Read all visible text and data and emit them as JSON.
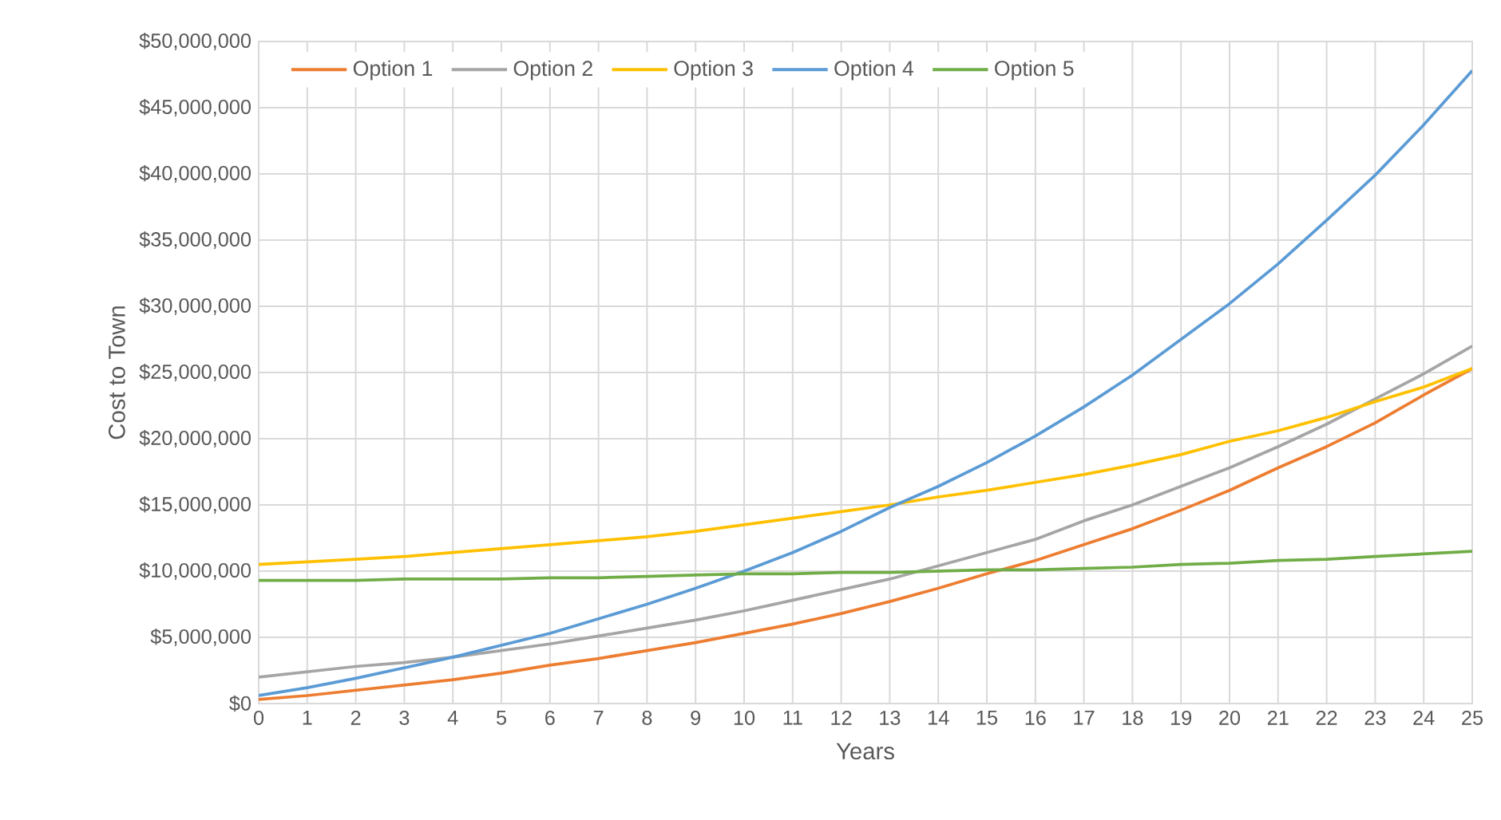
{
  "chart_data": {
    "type": "line",
    "xlabel": "Years",
    "ylabel": "Cost to Town",
    "x": [
      0,
      1,
      2,
      3,
      4,
      5,
      6,
      7,
      8,
      9,
      10,
      11,
      12,
      13,
      14,
      15,
      16,
      17,
      18,
      19,
      20,
      21,
      22,
      23,
      24,
      25
    ],
    "xlim": [
      0,
      25
    ],
    "xticks": [
      0,
      1,
      2,
      3,
      4,
      5,
      6,
      7,
      8,
      9,
      10,
      11,
      12,
      13,
      14,
      15,
      16,
      17,
      18,
      19,
      20,
      21,
      22,
      23,
      24,
      25
    ],
    "ylim": [
      0,
      50000000
    ],
    "yticks": [
      {
        "value": 0,
        "label": "$0"
      },
      {
        "value": 5000000,
        "label": "$5,000,000"
      },
      {
        "value": 10000000,
        "label": "$10,000,000"
      },
      {
        "value": 15000000,
        "label": "$15,000,000"
      },
      {
        "value": 20000000,
        "label": "$20,000,000"
      },
      {
        "value": 25000000,
        "label": "$25,000,000"
      },
      {
        "value": 30000000,
        "label": "$30,000,000"
      },
      {
        "value": 35000000,
        "label": "$35,000,000"
      },
      {
        "value": 40000000,
        "label": "$40,000,000"
      },
      {
        "value": 45000000,
        "label": "$45,000,000"
      },
      {
        "value": 50000000,
        "label": "$50,000,000"
      }
    ],
    "grid": true,
    "legend": "top",
    "line_style": "solid",
    "series": [
      {
        "name": "Option 1",
        "color": "#ed7d31",
        "values": [
          300000,
          600000,
          1000000,
          1400000,
          1800000,
          2300000,
          2900000,
          3400000,
          4000000,
          4600000,
          5300000,
          6000000,
          6800000,
          7700000,
          8700000,
          9800000,
          10800000,
          12000000,
          13200000,
          14600000,
          16100000,
          17800000,
          19400000,
          21200000,
          23300000,
          25300000
        ]
      },
      {
        "name": "Option 2",
        "color": "#a5a5a5",
        "values": [
          2000000,
          2400000,
          2800000,
          3100000,
          3500000,
          4000000,
          4500000,
          5100000,
          5700000,
          6300000,
          7000000,
          7800000,
          8600000,
          9400000,
          10400000,
          11400000,
          12400000,
          13800000,
          15000000,
          16400000,
          17800000,
          19400000,
          21100000,
          23000000,
          24900000,
          27000000
        ]
      },
      {
        "name": "Option 3",
        "color": "#ffc000",
        "values": [
          10500000,
          10700000,
          10900000,
          11100000,
          11400000,
          11700000,
          12000000,
          12300000,
          12600000,
          13000000,
          13500000,
          14000000,
          14500000,
          15000000,
          15600000,
          16100000,
          16700000,
          17300000,
          18000000,
          18800000,
          19800000,
          20600000,
          21600000,
          22800000,
          23900000,
          25300000
        ]
      },
      {
        "name": "Option 4",
        "color": "#5b9bd5",
        "values": [
          600000,
          1200000,
          1900000,
          2700000,
          3500000,
          4400000,
          5300000,
          6400000,
          7500000,
          8700000,
          10000000,
          11400000,
          13000000,
          14800000,
          16400000,
          18200000,
          20200000,
          22400000,
          24800000,
          27500000,
          30200000,
          33200000,
          36500000,
          39900000,
          43700000,
          47800000
        ]
      },
      {
        "name": "Option 5",
        "color": "#70ad47",
        "values": [
          9300000,
          9300000,
          9300000,
          9400000,
          9400000,
          9400000,
          9500000,
          9500000,
          9600000,
          9700000,
          9800000,
          9800000,
          9900000,
          9900000,
          10000000,
          10100000,
          10100000,
          10200000,
          10300000,
          10500000,
          10600000,
          10800000,
          10900000,
          11100000,
          11300000,
          11500000
        ]
      }
    ]
  }
}
